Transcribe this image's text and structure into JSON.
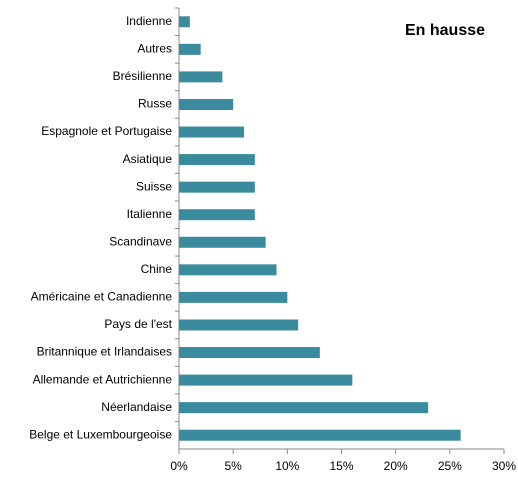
{
  "chart_data": {
    "type": "barh",
    "title": "En hausse",
    "categories": [
      "Indienne",
      "Autres",
      "Brésilienne",
      "Russe",
      "Espagnole et Portugaise",
      "Asiatique",
      "Suisse",
      "Italienne",
      "Scandinave",
      "Chine",
      "Américaine et Canadienne",
      "Pays de l'est",
      "Britannique et Irlandaises",
      "Allemande et Autrichienne",
      "Néerlandaise",
      "Belge et Luxembourgeoise"
    ],
    "values": [
      1,
      2,
      4,
      5,
      6,
      7,
      7,
      7,
      8,
      9,
      10,
      11,
      13,
      16,
      23,
      26
    ],
    "color": "#3a8b9e",
    "xlim": [
      0,
      30
    ],
    "xticks": [
      {
        "value": 0,
        "label": "0%"
      },
      {
        "value": 5,
        "label": "5%"
      },
      {
        "value": 10,
        "label": "10%"
      },
      {
        "value": 15,
        "label": "15%"
      },
      {
        "value": 20,
        "label": "20%"
      },
      {
        "value": 25,
        "label": "25%"
      },
      {
        "value": 30,
        "label": "30%"
      }
    ],
    "grid": false
  }
}
